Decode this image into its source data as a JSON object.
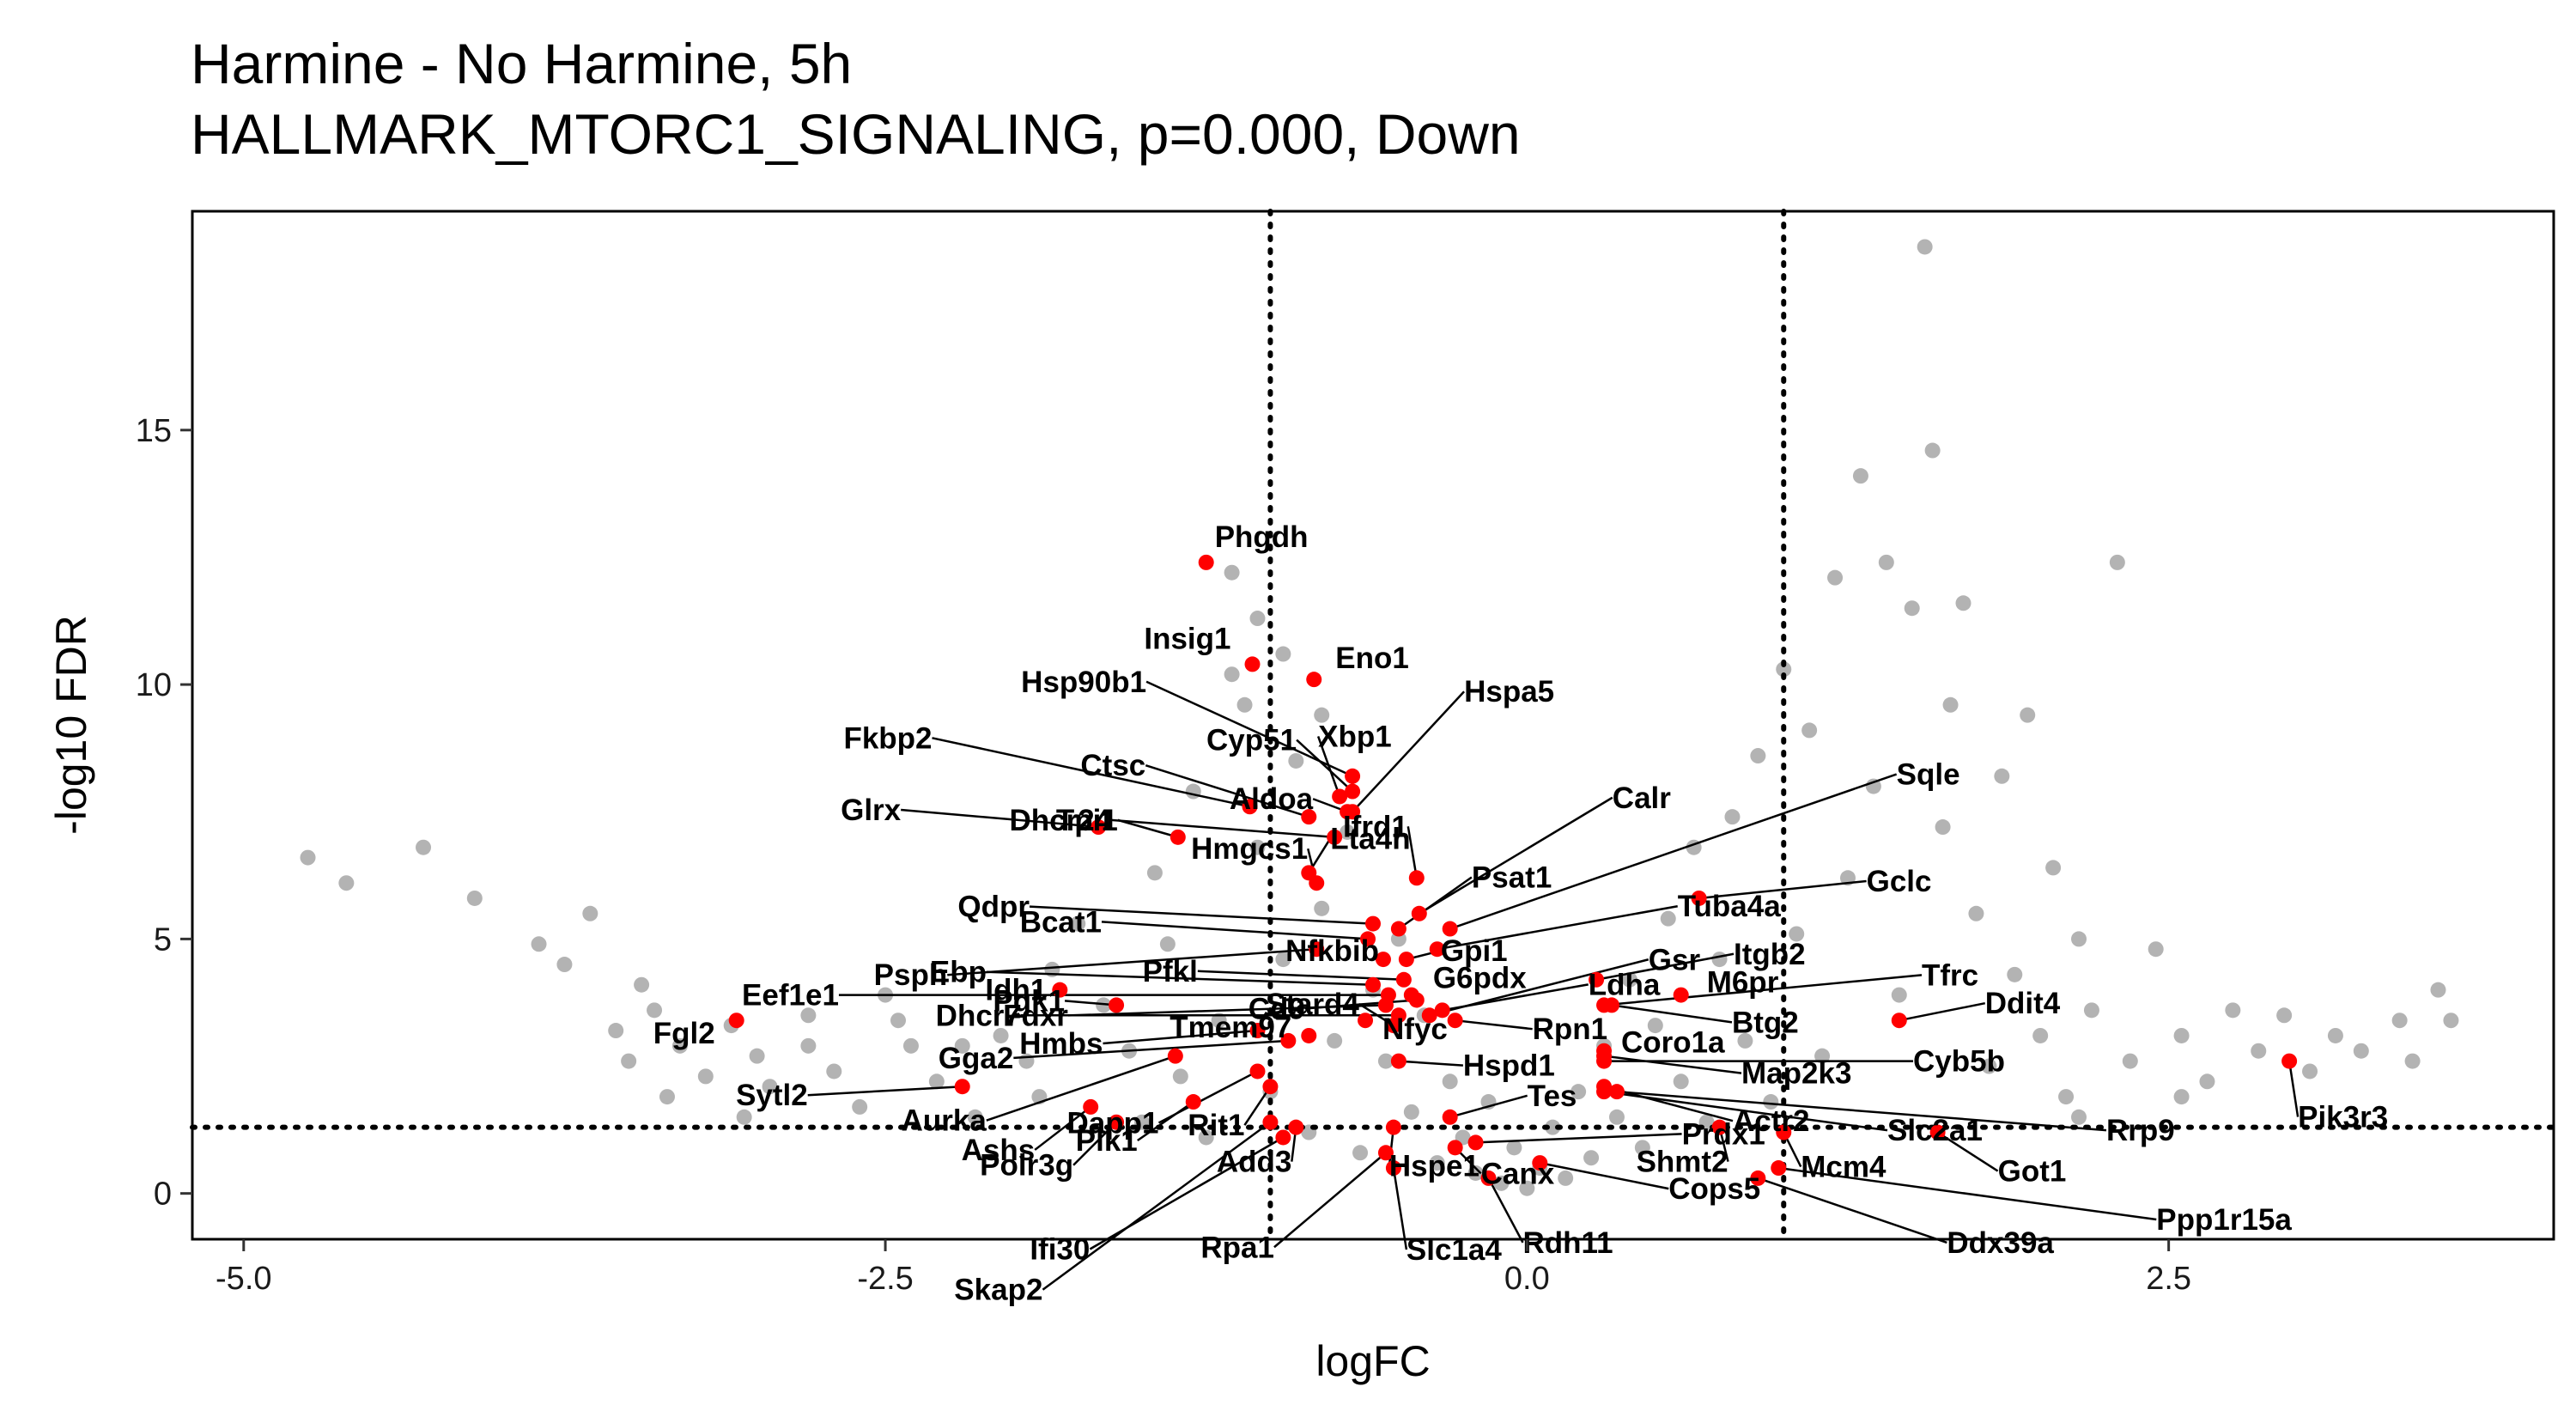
{
  "title_line1": "Harmine - No Harmine, 5h",
  "title_line2": "HALLMARK_MTORC1_SIGNALING, p=0.000, Down",
  "colors": {
    "highlight": "#ff0000",
    "background_points": "#b3b3b3",
    "threshold_lines": "#000000"
  },
  "chart_data": {
    "type": "scatter",
    "xlabel": "logFC",
    "ylabel": "-log10 FDR",
    "xlim": [
      -5.2,
      4.0
    ],
    "ylim": [
      -0.9,
      19.3
    ],
    "x_ticks": [
      -5.0,
      -2.5,
      0.0,
      2.5
    ],
    "x_tick_labels": [
      "-5.0",
      "-2.5",
      "0.0",
      "2.5"
    ],
    "y_ticks": [
      0,
      5,
      10,
      15
    ],
    "y_tick_labels": [
      "0",
      "5",
      "10",
      "15"
    ],
    "thresholds": {
      "logFC": [
        -1,
        1
      ],
      "neglog10FDR": 1.3
    },
    "grid": false,
    "series": [
      {
        "points": [
          {
            "x": -4.75,
            "y": 6.6
          },
          {
            "x": -4.6,
            "y": 6.1
          },
          {
            "x": -4.3,
            "y": 6.8
          },
          {
            "x": -4.1,
            "y": 5.8
          },
          {
            "x": -3.85,
            "y": 4.9
          },
          {
            "x": -3.65,
            "y": 5.5
          },
          {
            "x": -3.75,
            "y": 4.5
          },
          {
            "x": -3.45,
            "y": 4.1
          },
          {
            "x": -3.4,
            "y": 3.6
          },
          {
            "x": -3.55,
            "y": 3.2
          },
          {
            "x": -3.3,
            "y": 2.9
          },
          {
            "x": -3.5,
            "y": 2.6
          },
          {
            "x": -3.35,
            "y": 1.9
          },
          {
            "x": -3.2,
            "y": 2.3
          },
          {
            "x": -3.1,
            "y": 3.3
          },
          {
            "x": -3.0,
            "y": 2.7
          },
          {
            "x": -2.95,
            "y": 2.1
          },
          {
            "x": -2.8,
            "y": 3.5
          },
          {
            "x": -2.7,
            "y": 2.4
          },
          {
            "x": -2.6,
            "y": 1.7
          },
          {
            "x": -2.5,
            "y": 3.9
          },
          {
            "x": -2.4,
            "y": 2.9
          },
          {
            "x": -2.3,
            "y": 2.2
          },
          {
            "x": -2.15,
            "y": 1.5
          },
          {
            "x": -2.05,
            "y": 3.1
          },
          {
            "x": -1.95,
            "y": 2.6
          },
          {
            "x": -1.9,
            "y": 1.9
          },
          {
            "x": -1.85,
            "y": 4.4
          },
          {
            "x": -1.75,
            "y": 5.3
          },
          {
            "x": -1.65,
            "y": 3.7
          },
          {
            "x": -1.55,
            "y": 2.8
          },
          {
            "x": -1.5,
            "y": 1.4
          },
          {
            "x": -1.45,
            "y": 6.3
          },
          {
            "x": -1.4,
            "y": 4.9
          },
          {
            "x": -1.35,
            "y": 2.3
          },
          {
            "x": -1.3,
            "y": 7.9
          },
          {
            "x": -1.25,
            "y": 1.1
          },
          {
            "x": -1.2,
            "y": 3.4
          },
          {
            "x": -1.15,
            "y": 10.2
          },
          {
            "x": -1.1,
            "y": 9.6
          },
          {
            "x": -1.05,
            "y": 6.8
          },
          {
            "x": -1.0,
            "y": 2.0
          },
          {
            "x": -0.95,
            "y": 4.6
          },
          {
            "x": -0.9,
            "y": 8.5
          },
          {
            "x": -0.85,
            "y": 1.2
          },
          {
            "x": -0.8,
            "y": 5.6
          },
          {
            "x": -0.75,
            "y": 3.0
          },
          {
            "x": -0.7,
            "y": 7.1
          },
          {
            "x": -0.65,
            "y": 0.8
          },
          {
            "x": -0.6,
            "y": 4.0
          },
          {
            "x": -0.55,
            "y": 2.6
          },
          {
            "x": -0.5,
            "y": 5.0
          },
          {
            "x": -0.45,
            "y": 1.6
          },
          {
            "x": -0.4,
            "y": 3.5
          },
          {
            "x": -0.35,
            "y": 0.6
          },
          {
            "x": -0.3,
            "y": 2.2
          },
          {
            "x": -0.25,
            "y": 1.1
          },
          {
            "x": -0.2,
            "y": 0.4
          },
          {
            "x": -0.15,
            "y": 1.8
          },
          {
            "x": -0.1,
            "y": 0.2
          },
          {
            "x": -0.05,
            "y": 0.9
          },
          {
            "x": 0.0,
            "y": 0.1
          },
          {
            "x": 0.05,
            "y": 0.5
          },
          {
            "x": 0.1,
            "y": 1.3
          },
          {
            "x": 0.15,
            "y": 0.3
          },
          {
            "x": 0.2,
            "y": 2.0
          },
          {
            "x": 0.25,
            "y": 0.7
          },
          {
            "x": 0.3,
            "y": 2.9
          },
          {
            "x": 0.35,
            "y": 1.5
          },
          {
            "x": 0.4,
            "y": 4.2
          },
          {
            "x": 0.45,
            "y": 0.9
          },
          {
            "x": 0.5,
            "y": 3.3
          },
          {
            "x": 0.55,
            "y": 5.4
          },
          {
            "x": 0.6,
            "y": 2.2
          },
          {
            "x": 0.65,
            "y": 6.8
          },
          {
            "x": 0.7,
            "y": 1.4
          },
          {
            "x": 0.75,
            "y": 4.6
          },
          {
            "x": 0.8,
            "y": 7.4
          },
          {
            "x": 0.85,
            "y": 3.0
          },
          {
            "x": 0.9,
            "y": 8.6
          },
          {
            "x": 0.95,
            "y": 1.8
          },
          {
            "x": 1.0,
            "y": 10.3
          },
          {
            "x": 1.05,
            "y": 5.1
          },
          {
            "x": 1.1,
            "y": 9.1
          },
          {
            "x": 1.15,
            "y": 2.7
          },
          {
            "x": 1.2,
            "y": 12.1
          },
          {
            "x": 1.25,
            "y": 6.2
          },
          {
            "x": 1.3,
            "y": 14.1
          },
          {
            "x": 1.35,
            "y": 8.0
          },
          {
            "x": 1.4,
            "y": 12.4
          },
          {
            "x": 1.45,
            "y": 3.9
          },
          {
            "x": 1.5,
            "y": 11.5
          },
          {
            "x": 1.55,
            "y": 18.6
          },
          {
            "x": 1.58,
            "y": 14.6
          },
          {
            "x": 1.62,
            "y": 7.2
          },
          {
            "x": 1.65,
            "y": 9.6
          },
          {
            "x": 1.7,
            "y": 11.6
          },
          {
            "x": 1.75,
            "y": 5.5
          },
          {
            "x": 1.8,
            "y": 2.5
          },
          {
            "x": 1.85,
            "y": 8.2
          },
          {
            "x": 1.9,
            "y": 4.3
          },
          {
            "x": 1.95,
            "y": 9.4
          },
          {
            "x": 2.0,
            "y": 3.1
          },
          {
            "x": 2.05,
            "y": 6.4
          },
          {
            "x": 2.1,
            "y": 1.9
          },
          {
            "x": 2.15,
            "y": 5.0
          },
          {
            "x": 2.2,
            "y": 3.6
          },
          {
            "x": 2.3,
            "y": 12.4
          },
          {
            "x": 2.35,
            "y": 2.6
          },
          {
            "x": 2.45,
            "y": 4.8
          },
          {
            "x": 2.55,
            "y": 3.1
          },
          {
            "x": 2.65,
            "y": 2.2
          },
          {
            "x": 2.75,
            "y": 3.6
          },
          {
            "x": 2.85,
            "y": 2.8
          },
          {
            "x": 2.95,
            "y": 3.5
          },
          {
            "x": 3.05,
            "y": 2.4
          },
          {
            "x": 3.15,
            "y": 3.1
          },
          {
            "x": 3.25,
            "y": 2.8
          },
          {
            "x": 3.4,
            "y": 3.4
          },
          {
            "x": 3.55,
            "y": 4.0
          },
          {
            "x": 3.45,
            "y": 2.6
          },
          {
            "x": 3.6,
            "y": 3.4
          },
          {
            "x": 2.15,
            "y": 1.5
          },
          {
            "x": 2.55,
            "y": 1.9
          },
          {
            "x": -2.2,
            "y": 2.9
          },
          {
            "x": -2.45,
            "y": 3.4
          },
          {
            "x": -2.8,
            "y": 2.9
          },
          {
            "x": -3.05,
            "y": 1.5
          },
          {
            "x": -1.15,
            "y": 12.2
          },
          {
            "x": -1.05,
            "y": 11.3
          },
          {
            "x": -0.95,
            "y": 10.6
          },
          {
            "x": -0.8,
            "y": 9.4
          }
        ]
      },
      {
        "name": "HALLMARK_MTORC1_SIGNALING",
        "points": [
          {
            "gene": "Phgdh",
            "x": -1.25,
            "y": 12.4
          },
          {
            "gene": "Insig1",
            "x": -1.07,
            "y": 10.4
          },
          {
            "gene": "Eno1",
            "x": -0.83,
            "y": 10.1
          },
          {
            "gene": "Hsp90b1",
            "x": -0.68,
            "y": 8.2
          },
          {
            "gene": "Cyp51",
            "x": -0.68,
            "y": 7.9
          },
          {
            "gene": "Xbp1",
            "x": -0.73,
            "y": 7.8
          },
          {
            "gene": "Hspa5",
            "x": -0.68,
            "y": 7.5
          },
          {
            "gene": "Fkbp2",
            "x": -1.08,
            "y": 7.6
          },
          {
            "gene": "Ctsc",
            "x": -0.85,
            "y": 7.4
          },
          {
            "gene": "Aldoa",
            "x": -0.7,
            "y": 7.5
          },
          {
            "gene": "Lta4h",
            "x": -0.85,
            "y": 6.3
          },
          {
            "gene": "Tpi1",
            "x": -1.36,
            "y": 7.0
          },
          {
            "gene": "Glrx",
            "x": -1.67,
            "y": 7.2
          },
          {
            "gene": "Dhcr24",
            "x": -0.75,
            "y": 7.0
          },
          {
            "gene": "Ifrd1",
            "x": -0.43,
            "y": 6.2
          },
          {
            "gene": "Hmgcs1",
            "x": -0.82,
            "y": 6.1
          },
          {
            "gene": "Psph",
            "x": -0.82,
            "y": 4.8
          },
          {
            "gene": "Qdpr",
            "x": -0.6,
            "y": 5.3
          },
          {
            "gene": "Bcat1",
            "x": -0.62,
            "y": 5.0
          },
          {
            "gene": "Psat1",
            "x": -0.5,
            "y": 5.2
          },
          {
            "gene": "Nfkbib",
            "x": -0.56,
            "y": 4.6
          },
          {
            "gene": "Gpi1",
            "x": -0.47,
            "y": 4.6
          },
          {
            "gene": "Calr",
            "x": -0.42,
            "y": 5.5
          },
          {
            "gene": "Sqle",
            "x": -0.3,
            "y": 5.2
          },
          {
            "gene": "Tuba4a",
            "x": -0.35,
            "y": 4.8
          },
          {
            "gene": "Gclc",
            "x": 0.67,
            "y": 5.8
          },
          {
            "gene": "Eef1e1",
            "x": -0.54,
            "y": 3.9
          },
          {
            "gene": "Ebp",
            "x": -0.6,
            "y": 4.1
          },
          {
            "gene": "Fdxr",
            "x": -0.55,
            "y": 3.7
          },
          {
            "gene": "Pfkl",
            "x": -0.48,
            "y": 4.2
          },
          {
            "gene": "Cd9",
            "x": -0.43,
            "y": 3.8
          },
          {
            "gene": "Gsr",
            "x": -0.38,
            "y": 3.5
          },
          {
            "gene": "G6pdx",
            "x": -0.45,
            "y": 3.9
          },
          {
            "gene": "Ldha",
            "x": -0.33,
            "y": 3.6
          },
          {
            "gene": "Itgb2",
            "x": 0.27,
            "y": 4.2
          },
          {
            "gene": "Tfrc",
            "x": 0.3,
            "y": 3.7
          },
          {
            "gene": "Dhcr7",
            "x": -0.5,
            "y": 3.5
          },
          {
            "gene": "Idh1",
            "x": -1.82,
            "y": 4.0
          },
          {
            "gene": "Pgk1",
            "x": -1.6,
            "y": 3.7
          },
          {
            "gene": "Stard4",
            "x": -0.52,
            "y": 3.3
          },
          {
            "gene": "Rpn1",
            "x": -0.28,
            "y": 3.4
          },
          {
            "gene": "M6pr",
            "x": 0.6,
            "y": 3.9
          },
          {
            "gene": "Btg2",
            "x": 0.33,
            "y": 3.7
          },
          {
            "gene": "Ddit4",
            "x": 1.45,
            "y": 3.4
          },
          {
            "gene": "Fgl2",
            "x": -3.08,
            "y": 3.4
          },
          {
            "gene": "Gga2",
            "x": -0.93,
            "y": 3.0
          },
          {
            "gene": "Hmbs",
            "x": -1.05,
            "y": 3.2
          },
          {
            "gene": "Tmem97",
            "x": -0.85,
            "y": 3.1
          },
          {
            "gene": "Nfyc",
            "x": -0.63,
            "y": 3.4
          },
          {
            "gene": "Coro1a",
            "x": 0.3,
            "y": 2.8
          },
          {
            "gene": "Hspd1",
            "x": -0.5,
            "y": 2.6
          },
          {
            "gene": "Map2k3",
            "x": 0.3,
            "y": 2.7
          },
          {
            "gene": "Cyb5b",
            "x": 0.3,
            "y": 2.6
          },
          {
            "gene": "Sytl2",
            "x": -2.2,
            "y": 2.1
          },
          {
            "gene": "Aurka",
            "x": -1.37,
            "y": 2.7
          },
          {
            "gene": "Dapp1",
            "x": -1.05,
            "y": 2.4
          },
          {
            "gene": "Rit1",
            "x": -1.0,
            "y": 2.1
          },
          {
            "gene": "Tes",
            "x": -0.3,
            "y": 1.5
          },
          {
            "gene": "Actr2",
            "x": 0.3,
            "y": 2.1
          },
          {
            "gene": "Slc2a1",
            "x": 0.3,
            "y": 2.0
          },
          {
            "gene": "Rrp9",
            "x": 0.35,
            "y": 2.0
          },
          {
            "gene": "Pik3r3",
            "x": 2.97,
            "y": 2.6
          },
          {
            "gene": "Ashs",
            "x": -1.7,
            "y": 1.7
          },
          {
            "gene": "Polr3g",
            "x": -1.6,
            "y": 1.4
          },
          {
            "gene": "Plk1",
            "x": -1.3,
            "y": 1.8
          },
          {
            "gene": "Add3",
            "x": -0.9,
            "y": 1.3
          },
          {
            "gene": "Hspe1",
            "x": -0.52,
            "y": 1.3
          },
          {
            "gene": "Prdx1",
            "x": -0.2,
            "y": 1.0
          },
          {
            "gene": "Shmt2",
            "x": 0.75,
            "y": 1.3
          },
          {
            "gene": "Mcm4",
            "x": 1.0,
            "y": 1.2
          },
          {
            "gene": "Got1",
            "x": 1.6,
            "y": 1.2
          },
          {
            "gene": "Skap2",
            "x": -1.0,
            "y": 1.4
          },
          {
            "gene": "Ifi30",
            "x": -0.95,
            "y": 1.1
          },
          {
            "gene": "Rpa1",
            "x": -0.55,
            "y": 0.8
          },
          {
            "gene": "Slc1a4",
            "x": -0.52,
            "y": 0.5
          },
          {
            "gene": "Canx",
            "x": -0.28,
            "y": 0.9
          },
          {
            "gene": "Rdh11",
            "x": -0.15,
            "y": 0.3
          },
          {
            "gene": "Cops5",
            "x": 0.05,
            "y": 0.6
          },
          {
            "gene": "Ddx39a",
            "x": 0.9,
            "y": 0.3
          },
          {
            "gene": "Ppp1r15a",
            "x": 0.98,
            "y": 0.5
          }
        ]
      }
    ]
  }
}
